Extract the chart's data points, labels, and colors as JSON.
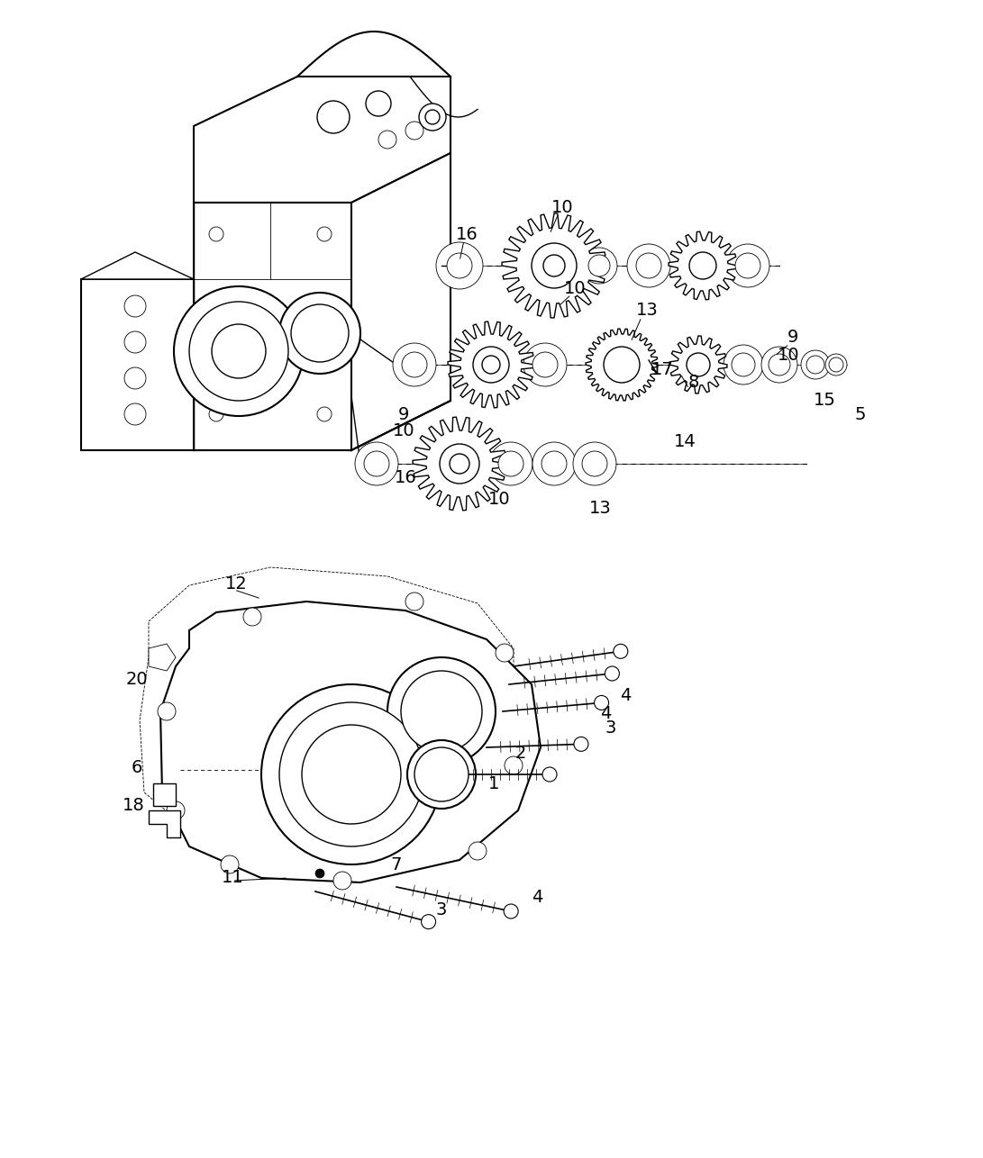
{
  "background_color": "#ffffff",
  "line_color": "#000000",
  "text_color": "#000000",
  "fig_width": 10.91,
  "fig_height": 12.86,
  "dpi": 100
}
